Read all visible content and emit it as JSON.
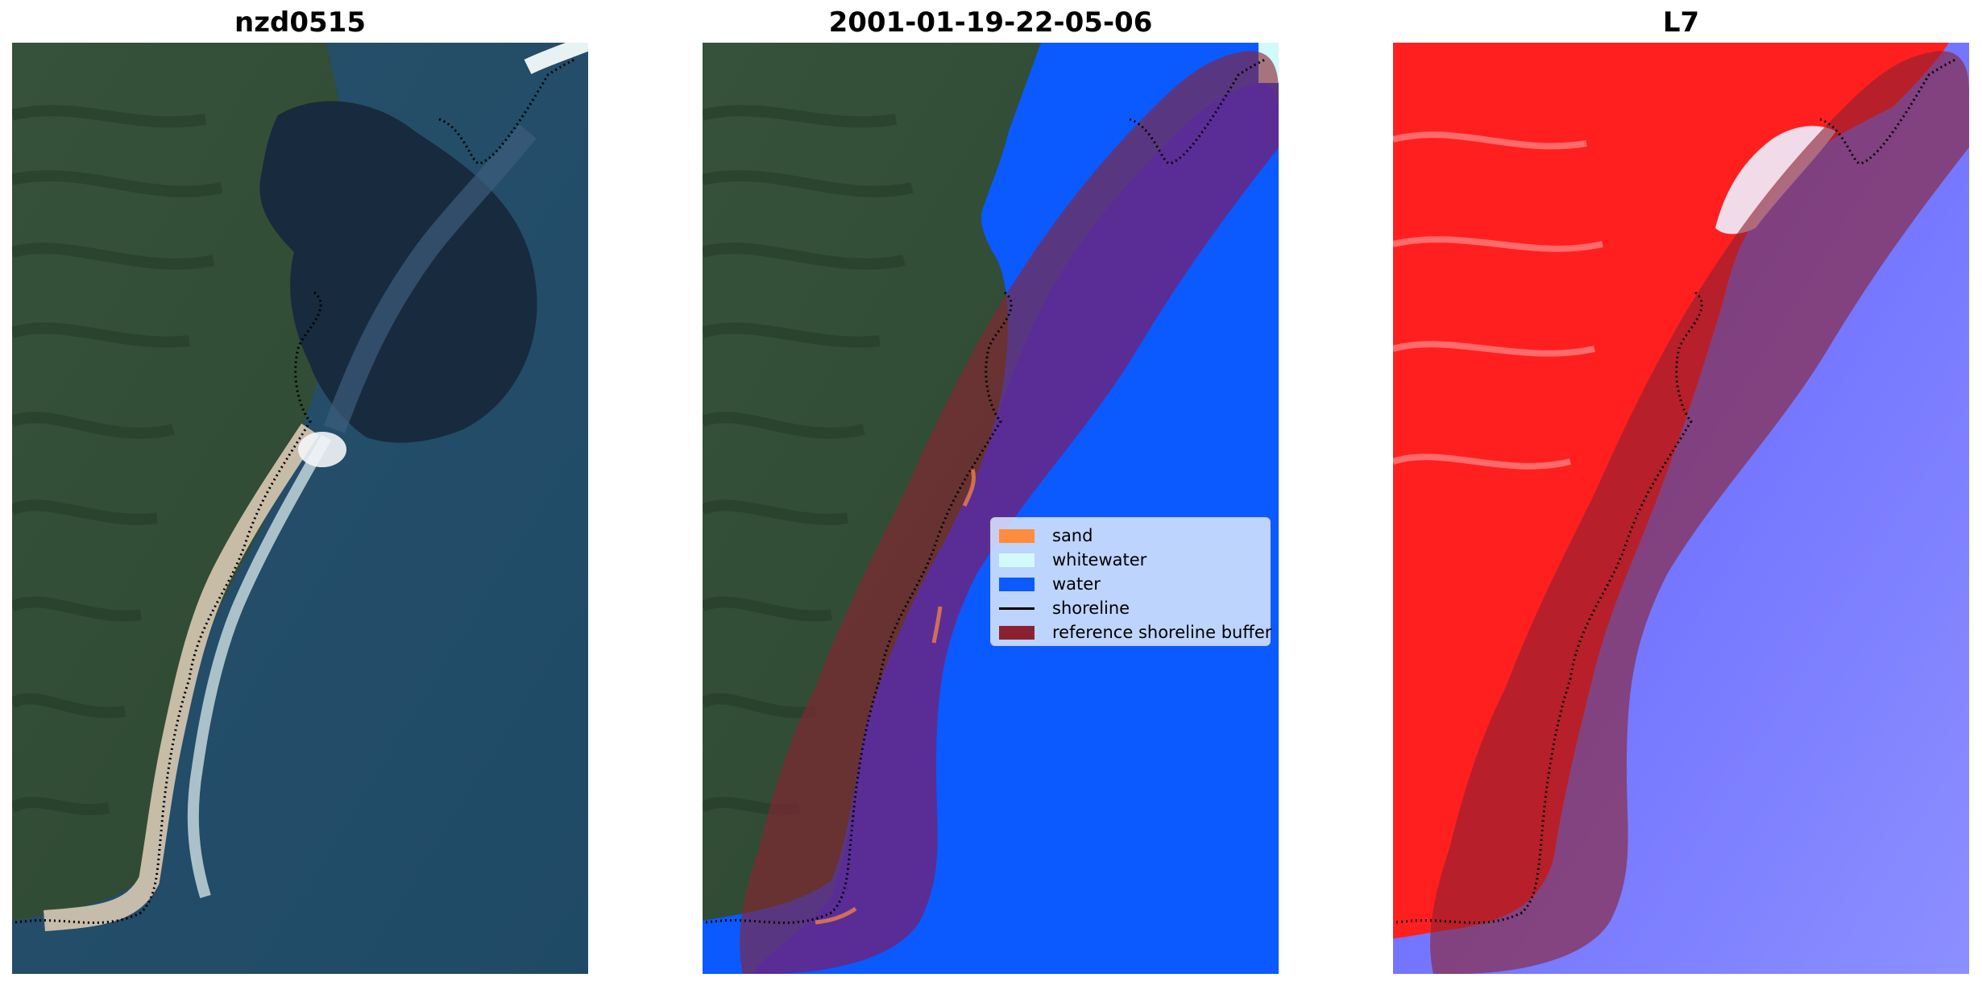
{
  "panels": [
    {
      "title": "nzd0515"
    },
    {
      "title": "2001-01-19-22-05-06"
    },
    {
      "title": "L7"
    }
  ],
  "legend": {
    "items": [
      {
        "label": "sand",
        "color": "#ff8c3c",
        "kind": "patch"
      },
      {
        "label": "whitewater",
        "color": "#d2fafa",
        "kind": "patch"
      },
      {
        "label": "water",
        "color": "#0a5aff",
        "kind": "patch"
      },
      {
        "label": "shoreline",
        "color": "#000000",
        "kind": "line"
      },
      {
        "label": "reference shoreline buffer",
        "color": "#8b2232",
        "kind": "patch"
      }
    ]
  },
  "colors": {
    "land": "#2f4a33",
    "sea": "#23506a",
    "dark_water": "#172638",
    "beach": "#d8c9b2",
    "classified_water": "#0a5aff",
    "buffer": "#8b2232",
    "index_land": "#ff2020",
    "index_water": "#4a4dff"
  }
}
